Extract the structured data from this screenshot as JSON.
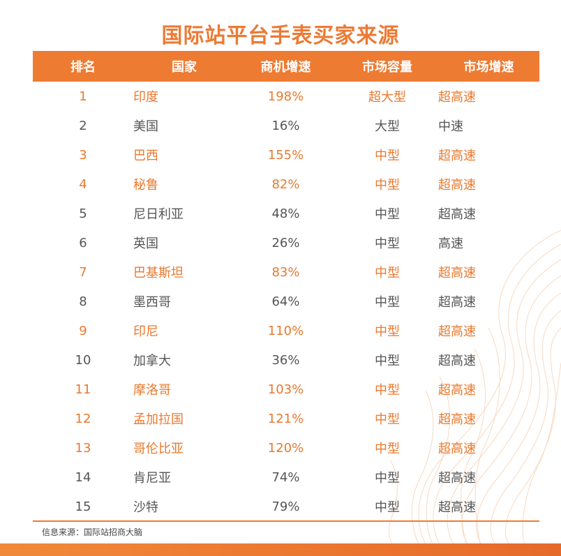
{
  "title": "国际站平台手表买家来源",
  "headers": [
    "排名",
    "国家",
    "商机增速",
    "市场容量",
    "市场增速"
  ],
  "rows": [
    {
      "rank": "1",
      "country": "印度",
      "growth": "198%",
      "capacity": "超大型",
      "speed": "超高速",
      "highlight": true
    },
    {
      "rank": "2",
      "country": "美国",
      "growth": "16%",
      "capacity": "大型",
      "speed": "中速",
      "highlight": false
    },
    {
      "rank": "3",
      "country": "巴西",
      "growth": "155%",
      "capacity": "中型",
      "speed": "超高速",
      "highlight": true
    },
    {
      "rank": "4",
      "country": "秘鲁",
      "growth": "82%",
      "capacity": "中型",
      "speed": "超高速",
      "highlight": true
    },
    {
      "rank": "5",
      "country": "尼日利亚",
      "growth": "48%",
      "capacity": "中型",
      "speed": "超高速",
      "highlight": false
    },
    {
      "rank": "6",
      "country": "英国",
      "growth": "26%",
      "capacity": "中型",
      "speed": "高速",
      "highlight": false
    },
    {
      "rank": "7",
      "country": "巴基斯坦",
      "growth": "83%",
      "capacity": "中型",
      "speed": "超高速",
      "highlight": true
    },
    {
      "rank": "8",
      "country": "墨西哥",
      "growth": "64%",
      "capacity": "中型",
      "speed": "超高速",
      "highlight": false
    },
    {
      "rank": "9",
      "country": "印尼",
      "growth": "110%",
      "capacity": "中型",
      "speed": "超高速",
      "highlight": true
    },
    {
      "rank": "10",
      "country": "加拿大",
      "growth": "36%",
      "capacity": "中型",
      "speed": "超高速",
      "highlight": false
    },
    {
      "rank": "11",
      "country": "摩洛哥",
      "growth": "103%",
      "capacity": "中型",
      "speed": "超高速",
      "highlight": true
    },
    {
      "rank": "12",
      "country": "孟加拉国",
      "growth": "121%",
      "capacity": "中型",
      "speed": "超高速",
      "highlight": true
    },
    {
      "rank": "13",
      "country": "哥伦比亚",
      "growth": "120%",
      "capacity": "中型",
      "speed": "超高速",
      "highlight": true
    },
    {
      "rank": "14",
      "country": "肯尼亚",
      "growth": "74%",
      "capacity": "中型",
      "speed": "超高速",
      "highlight": false
    },
    {
      "rank": "15",
      "country": "沙特",
      "growth": "79%",
      "capacity": "中型",
      "speed": "超高速",
      "highlight": false
    }
  ],
  "source": "信息来源：国际站招商大脑",
  "colors": {
    "accent": "#ee7b32",
    "highlight_text": "#e8792f",
    "normal_text": "#555555"
  }
}
